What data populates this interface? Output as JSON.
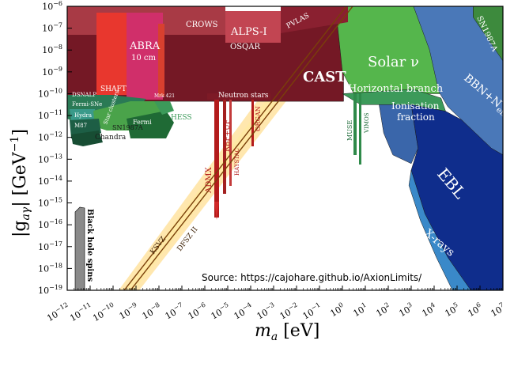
{
  "chart_data": {
    "type": "area",
    "xlabel_main": "m",
    "xlabel_sub": "a",
    "xlabel_unit": " [eV]",
    "ylabel_main": "|g",
    "ylabel_sub": "aγ",
    "ylabel_unit": "| [GeV",
    "ylabel_exp": "−1",
    "ylabel_close": "]",
    "xscale": "log",
    "yscale": "log",
    "xlim": [
      1e-12,
      10000000.0
    ],
    "ylim": [
      1e-19,
      1e-06
    ],
    "x_ticks": [
      {
        "base": "10",
        "exp": "−12",
        "value": -12
      },
      {
        "base": "10",
        "exp": "−11",
        "value": -11
      },
      {
        "base": "10",
        "exp": "−10",
        "value": -10
      },
      {
        "base": "10",
        "exp": "−9",
        "value": -9
      },
      {
        "base": "10",
        "exp": "−8",
        "value": -8
      },
      {
        "base": "10",
        "exp": "−7",
        "value": -7
      },
      {
        "base": "10",
        "exp": "−6",
        "value": -6
      },
      {
        "base": "10",
        "exp": "−5",
        "value": -5
      },
      {
        "base": "10",
        "exp": "−4",
        "value": -4
      },
      {
        "base": "10",
        "exp": "−3",
        "value": -3
      },
      {
        "base": "10",
        "exp": "−2",
        "value": -2
      },
      {
        "base": "10",
        "exp": "−1",
        "value": -1
      },
      {
        "base": "10",
        "exp": "0",
        "value": 0
      },
      {
        "base": "10",
        "exp": "1",
        "value": 1
      },
      {
        "base": "10",
        "exp": "2",
        "value": 2
      },
      {
        "base": "10",
        "exp": "3",
        "value": 3
      },
      {
        "base": "10",
        "exp": "4",
        "value": 4
      },
      {
        "base": "10",
        "exp": "5",
        "value": 5
      },
      {
        "base": "10",
        "exp": "6",
        "value": 6
      },
      {
        "base": "10",
        "exp": "7",
        "value": 7
      }
    ],
    "y_ticks": [
      {
        "base": "10",
        "exp": "−6",
        "value": -6
      },
      {
        "base": "10",
        "exp": "−7",
        "value": -7
      },
      {
        "base": "10",
        "exp": "−8",
        "value": -8
      },
      {
        "base": "10",
        "exp": "−9",
        "value": -9
      },
      {
        "base": "10",
        "exp": "−10",
        "value": -10
      },
      {
        "base": "10",
        "exp": "−11",
        "value": -11
      },
      {
        "base": "10",
        "exp": "−12",
        "value": -12
      },
      {
        "base": "10",
        "exp": "−13",
        "value": -13
      },
      {
        "base": "10",
        "exp": "−14",
        "value": -14
      },
      {
        "base": "10",
        "exp": "−15",
        "value": -15
      },
      {
        "base": "10",
        "exp": "−16",
        "value": -16
      },
      {
        "base": "10",
        "exp": "−17",
        "value": -17
      },
      {
        "base": "10",
        "exp": "−18",
        "value": -18
      },
      {
        "base": "10",
        "exp": "−19",
        "value": -19
      }
    ],
    "source_note": "Source: https://cajohare.github.io/AxionLimits/",
    "qcd_band": {
      "lines": [
        {
          "label": "KSVZ",
          "log_g_at_log_m0": -16.1
        },
        {
          "label": "DFSZ II",
          "log_g_at_log_m0": -16.5
        }
      ],
      "slope": 1
    },
    "regions": [
      {
        "name": "Solar ν",
        "color": "#55b64c",
        "label_text": "Solar ν",
        "polygon": [
          [
            -0.3,
            -6
          ],
          [
            3.1,
            -6
          ],
          [
            3.9,
            -8
          ],
          [
            4.3,
            -10
          ],
          [
            0.5,
            -10
          ],
          [
            0,
            -9
          ]
        ]
      },
      {
        "name": "SN1987A (high mass)",
        "color": "#3d8a3d",
        "label_text": "SN1987A",
        "polygon": [
          [
            5.7,
            -6
          ],
          [
            7,
            -6
          ],
          [
            7,
            -8.5
          ],
          [
            6.2,
            -8
          ],
          [
            5.7,
            -6.5
          ]
        ]
      },
      {
        "name": "Horizontal branch",
        "color": "#3c9a5a",
        "label_text": "Horizontal branch",
        "polygon": [
          [
            0,
            -10
          ],
          [
            3.1,
            -9.8
          ],
          [
            4.3,
            -10.2
          ],
          [
            4.5,
            -10.8
          ],
          [
            3.0,
            -10.5
          ],
          [
            0.8,
            -10.5
          ]
        ]
      },
      {
        "name": "BBN+N_eff",
        "color": "#4a78b8",
        "label_text_main": "BBN+N",
        "label_text_sub": "eff",
        "polygon": [
          [
            3.1,
            -6
          ],
          [
            5.7,
            -6
          ],
          [
            5.7,
            -6.5
          ],
          [
            7,
            -8.5
          ],
          [
            7,
            -12.8
          ],
          [
            6.5,
            -12.5
          ],
          [
            5.2,
            -11.2
          ],
          [
            4.6,
            -10.6
          ],
          [
            4.2,
            -9.9
          ],
          [
            3.8,
            -8
          ]
        ]
      },
      {
        "name": "Ionisation fraction",
        "color": "#3a66aa",
        "label_text_main": "Ionisation",
        "label_text_sub": "fraction",
        "polygon": [
          [
            1.6,
            -10.5
          ],
          [
            3.0,
            -10.5
          ],
          [
            3.3,
            -12.5
          ],
          [
            3.0,
            -13.2
          ],
          [
            2.2,
            -12.8
          ],
          [
            1.8,
            -11.8
          ]
        ]
      },
      {
        "name": "EBL",
        "color": "#0f2d8c",
        "label_text": "EBL",
        "polygon": [
          [
            3.0,
            -10.5
          ],
          [
            4.5,
            -10.8
          ],
          [
            5.2,
            -11.2
          ],
          [
            6.5,
            -12.5
          ],
          [
            7,
            -12.8
          ],
          [
            7,
            -19
          ],
          [
            5.6,
            -19
          ],
          [
            4.6,
            -17.5
          ],
          [
            3.6,
            -15.5
          ],
          [
            3.0,
            -13.5
          ],
          [
            3.3,
            -12.5
          ]
        ]
      },
      {
        "name": "X-rays",
        "color": "#3a89c9",
        "label_text": "X-rays",
        "polygon": [
          [
            3.0,
            -13.5
          ],
          [
            3.6,
            -15.5
          ],
          [
            4.6,
            -17.5
          ],
          [
            5.6,
            -19
          ],
          [
            4.8,
            -19
          ],
          [
            4.1,
            -17.5
          ],
          [
            3.4,
            -15.8
          ],
          [
            2.9,
            -14.2
          ]
        ]
      },
      {
        "name": "CAST",
        "color": "#741825",
        "label_text": "CAST",
        "polygon": [
          [
            -12,
            -6.8
          ],
          [
            0.05,
            -6.8
          ],
          [
            0.05,
            -10.35
          ],
          [
            -12,
            -10.35
          ]
        ]
      }
    ],
    "labels": [
      {
        "text": "CROWS",
        "color": "#ffffff"
      },
      {
        "text": "ALPS-I",
        "color": "#ffffff"
      },
      {
        "text": "PVLAS",
        "color": "#ffffff"
      },
      {
        "text": "ABRA",
        "color": "#ffffff"
      },
      {
        "text": "10 cm",
        "color": "#ffffff"
      },
      {
        "text": "OSQAR",
        "color": "#ffffff"
      },
      {
        "text": "SHAFT",
        "color": "#ffffff"
      },
      {
        "text": "DSNALP",
        "color": "#ffffff"
      },
      {
        "text": "Mrk 421",
        "color": "#ffffff"
      },
      {
        "text": "Neutron stars",
        "color": "#ffffff"
      },
      {
        "text": "Fermi-SNe",
        "color": "#ffffff"
      },
      {
        "text": "Hydra",
        "color": "#ffffff"
      },
      {
        "text": "M87",
        "color": "#ffffff"
      },
      {
        "text": "Star clusters",
        "color": "#ffffff"
      },
      {
        "text": "Fermi",
        "color": "#ffffff"
      },
      {
        "text": "SN1987A",
        "color": "#1a1a1a"
      },
      {
        "text": "Chandra",
        "color": "#1a1a1a"
      },
      {
        "text": "HESS",
        "color": "#3c9a5a"
      },
      {
        "text": "ADMX",
        "color": "#b31b1b"
      },
      {
        "text": "RBF+UF",
        "color": "#b31b1b"
      },
      {
        "text": "HAYSTAC",
        "color": "#b31b1b"
      },
      {
        "text": "ORGAN",
        "color": "#b31b1b"
      },
      {
        "text": "MUSE",
        "color": "#1f6b3a"
      },
      {
        "text": "VIMOS",
        "color": "#1f6b3a"
      },
      {
        "text": "Black hole spins",
        "color": "#000000"
      }
    ]
  }
}
